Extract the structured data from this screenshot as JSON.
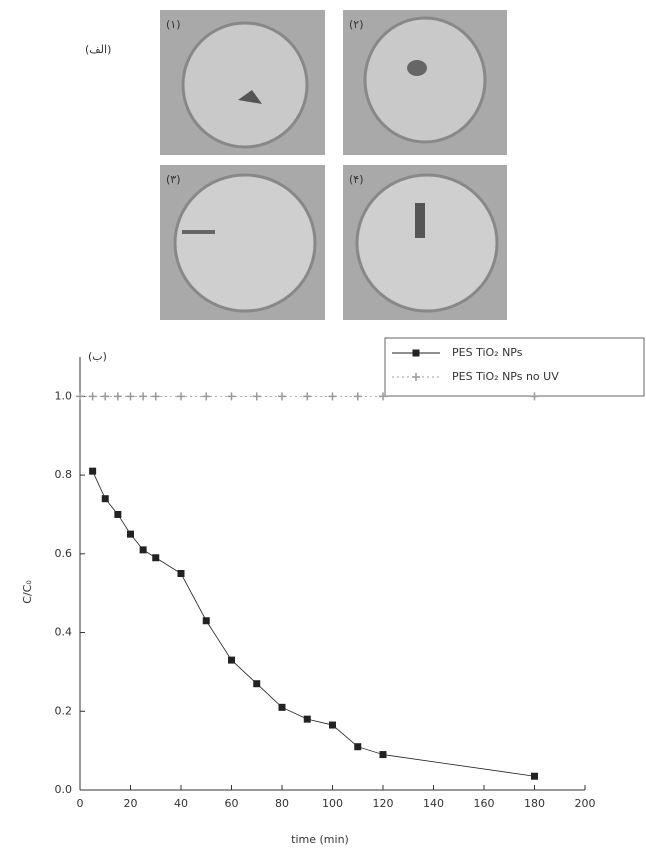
{
  "figure": {
    "label": "(الف)",
    "photos": [
      "(۱)",
      "(۲)",
      "(۳)",
      "(۴)"
    ]
  },
  "chart_data": {
    "type": "line",
    "panel_label": "(ب)",
    "x_label": "time (min)",
    "y_label": "C/C₀",
    "xlim": [
      0,
      200
    ],
    "xticks": [
      0,
      20,
      40,
      60,
      80,
      100,
      120,
      140,
      160,
      180,
      200
    ],
    "ylim": [
      0,
      1.1
    ],
    "yticks": [
      {
        "value": 0,
        "label": "0.0"
      },
      0.2,
      0.4,
      0.6,
      0.8,
      {
        "value": 1,
        "label": "1.0"
      }
    ],
    "series": [
      {
        "name": "PES TiO₂ NPs",
        "color": "#222222",
        "marker": "square",
        "x": [
          5,
          10,
          15,
          20,
          25,
          30,
          40,
          50,
          60,
          70,
          80,
          90,
          100,
          110,
          120,
          180
        ],
        "values": [
          0.81,
          0.74,
          0.7,
          0.65,
          0.61,
          0.59,
          0.55,
          0.43,
          0.33,
          0.27,
          0.21,
          0.18,
          0.165,
          0.11,
          0.09,
          0.035
        ]
      },
      {
        "name": "PES TiO₂ NPs no UV",
        "color": "#999999",
        "marker": "plus",
        "x": [
          0,
          5,
          10,
          15,
          20,
          25,
          30,
          40,
          50,
          60,
          70,
          80,
          90,
          100,
          110,
          120,
          180
        ],
        "values": [
          1,
          1,
          1,
          1,
          1,
          1,
          1,
          1,
          1,
          1,
          1,
          1,
          1,
          1,
          1,
          1,
          1
        ]
      }
    ]
  }
}
